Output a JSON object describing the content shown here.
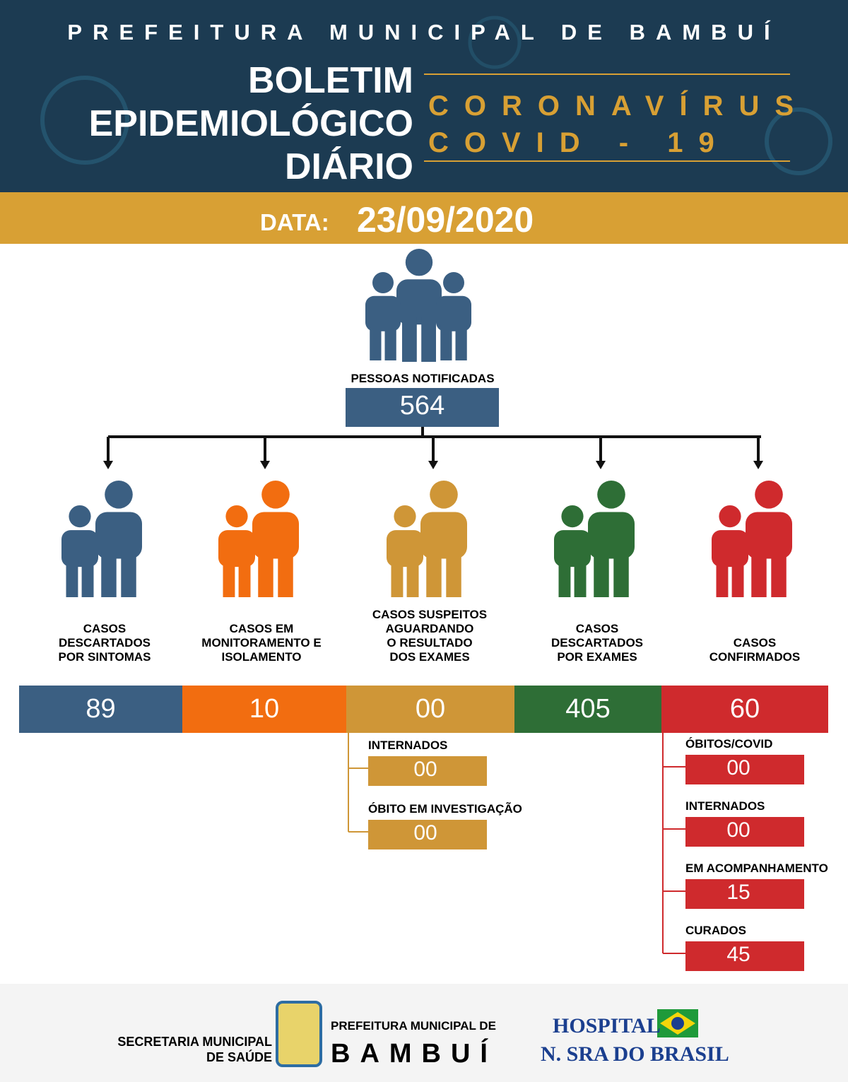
{
  "header": {
    "org": "PREFEITURA MUNICIPAL DE BAMBUÍ",
    "title_lines": [
      "BOLETIM",
      "EPIDEMIOLÓGICO",
      "DIÁRIO"
    ],
    "subtitle_lines": [
      "CORONAVÍRUS",
      "COVID - 19"
    ]
  },
  "date": {
    "label": "DATA:",
    "value": "23/09/2020"
  },
  "total": {
    "label": "PESSOAS NOTIFICADAS",
    "value": "564",
    "color": "#3b5f82"
  },
  "categories": [
    {
      "label_lines": [
        "CASOS",
        "DESCARTADOS",
        "POR SINTOMAS"
      ],
      "value": "89",
      "color": "#3b5f82",
      "sub": []
    },
    {
      "label_lines": [
        "CASOS EM",
        "MONITORAMENTO E",
        "ISOLAMENTO"
      ],
      "value": "10",
      "color": "#f26d10",
      "sub": []
    },
    {
      "label_lines": [
        "CASOS SUSPEITOS",
        "AGUARDANDO",
        "O RESULTADO",
        "DOS EXAMES"
      ],
      "value": "00",
      "color": "#cf9637",
      "sub": [
        {
          "label": "INTERNADOS",
          "value": "00"
        },
        {
          "label": "ÓBITO EM INVESTIGAÇÃO",
          "value": "00"
        }
      ]
    },
    {
      "label_lines": [
        "CASOS",
        "DESCARTADOS",
        "POR EXAMES"
      ],
      "value": "405",
      "color": "#2e6e36",
      "sub": []
    },
    {
      "label_lines": [
        "CASOS",
        "CONFIRMADOS"
      ],
      "value": "60",
      "color": "#cf2a2d",
      "sub": [
        {
          "label": "ÓBITOS/COVID",
          "value": "00"
        },
        {
          "label": "INTERNADOS",
          "value": "00"
        },
        {
          "label": "EM ACOMPANHAMENTO",
          "value": "15"
        },
        {
          "label": "CURADOS",
          "value": "45"
        }
      ]
    }
  ],
  "footer": {
    "secretaria_lines": [
      "SECRETARIA MUNICIPAL",
      "DE SAÚDE"
    ],
    "prefeitura_lines": [
      "PREFEITURA MUNICIPAL DE",
      "BAMBUÍ"
    ],
    "hospital_lines": [
      "HOSPITAL",
      "N. SRA DO BRASIL"
    ]
  }
}
